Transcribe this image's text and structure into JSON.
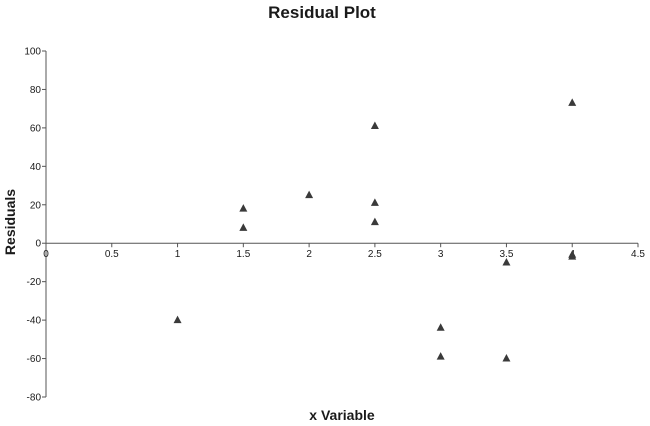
{
  "chart_data": {
    "type": "scatter",
    "title": "Residual Plot",
    "xlabel": "x Variable",
    "ylabel": "Residuals",
    "xlim": [
      0,
      4.5
    ],
    "ylim": [
      -80,
      100
    ],
    "x_ticks": [
      "0",
      "0.5",
      "1",
      "1.5",
      "2",
      "2.5",
      "3",
      "3.5",
      "4",
      "4.5"
    ],
    "y_ticks": [
      "100",
      "80",
      "60",
      "40",
      "20",
      "0",
      "-20",
      "-40",
      "-60",
      "-80"
    ],
    "grid": false,
    "legend": "none",
    "marker": "triangle",
    "marker_color": "#3a3a3a",
    "points": [
      {
        "x": 1,
        "y": -40
      },
      {
        "x": 1.5,
        "y": 18
      },
      {
        "x": 1.5,
        "y": 8
      },
      {
        "x": 2,
        "y": 25
      },
      {
        "x": 2.5,
        "y": 61
      },
      {
        "x": 2.5,
        "y": 21
      },
      {
        "x": 2.5,
        "y": 11
      },
      {
        "x": 3,
        "y": -44
      },
      {
        "x": 3,
        "y": -59
      },
      {
        "x": 3.5,
        "y": -10
      },
      {
        "x": 3.5,
        "y": -60
      },
      {
        "x": 4,
        "y": 73
      },
      {
        "x": 4,
        "y": -7
      },
      {
        "x": 4,
        "y": -6
      }
    ]
  }
}
